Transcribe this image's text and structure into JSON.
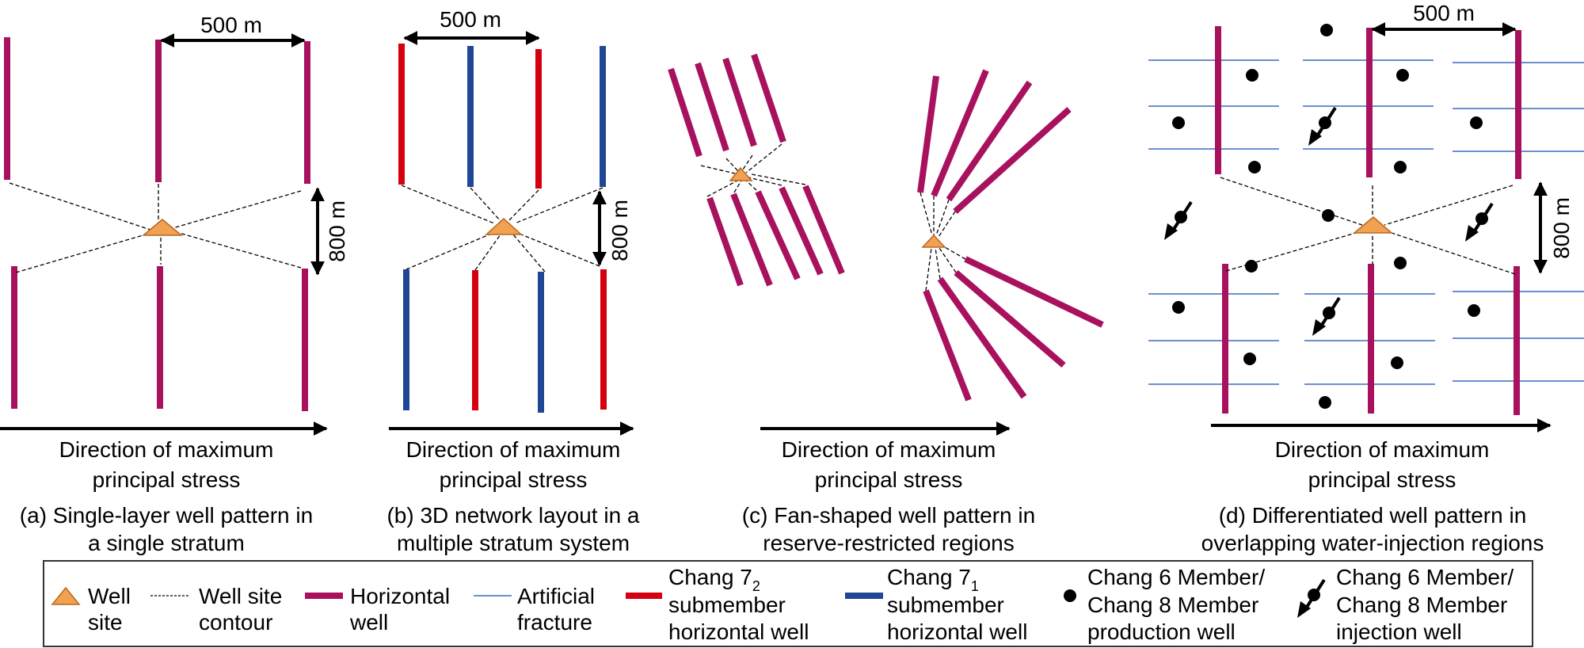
{
  "colors": {
    "horizontal_well": "#A8115E",
    "chang72_well": "#D40010",
    "chang71_well": "#1F4796",
    "artificial_fracture": "#6C8FD0",
    "well_site": "#F2A052"
  },
  "panels": {
    "a": {
      "spacing_label": "500 m",
      "distance_label": "800 m",
      "direction": [
        "Direction of maximum",
        "principal stress"
      ],
      "caption": [
        "(a) Single-layer well pattern in",
        "a single stratum"
      ]
    },
    "b": {
      "spacing_label": "500 m",
      "distance_label": "800 m",
      "direction": [
        "Direction of maximum",
        "principal stress"
      ],
      "caption": [
        "(b) 3D network layout in a",
        "multiple stratum system"
      ]
    },
    "c": {
      "direction": [
        "Direction of maximum",
        "principal stress"
      ],
      "caption": [
        "(c) Fan-shaped well pattern in",
        "reserve-restricted regions"
      ]
    },
    "d": {
      "spacing_label": "500 m",
      "distance_label": "800 m",
      "direction": [
        "Direction of maximum",
        "principal stress"
      ],
      "caption": [
        "(d) Differentiated well pattern in",
        "overlapping water-injection regions"
      ]
    }
  },
  "legend": {
    "well_site": [
      "Well",
      "site"
    ],
    "contour": [
      "Well site",
      "contour"
    ],
    "horizontal_well": [
      "Horizontal",
      "well"
    ],
    "fracture": [
      "Artificial",
      "fracture"
    ],
    "chang72": {
      "line1": "Chang 7",
      "sub": "2",
      "line2": "submember",
      "line3": "horizontal well"
    },
    "chang71": {
      "line1": "Chang 7",
      "sub": "1",
      "line2": "submember",
      "line3": "horizontal well"
    },
    "production": [
      "Chang 6 Member/",
      "Chang 8 Member",
      "production well"
    ],
    "injection": [
      "Chang 6 Member/",
      "Chang 8 Member",
      "injection well"
    ]
  }
}
